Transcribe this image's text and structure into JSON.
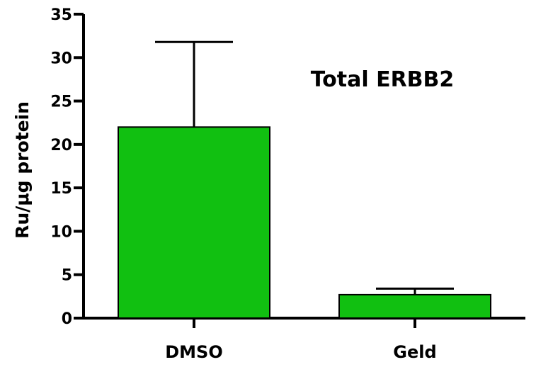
{
  "chart_data": {
    "type": "bar",
    "title": "Total ERBB2",
    "xlabel": "",
    "ylabel": "Ru/μg protein",
    "ylim": [
      0,
      35
    ],
    "yticks": [
      0,
      5,
      10,
      15,
      20,
      25,
      30,
      35
    ],
    "ytick_labels": [
      "0",
      "5",
      "10",
      "15",
      "20",
      "25",
      "30",
      "35"
    ],
    "categories": [
      "DMSO",
      "Geld"
    ],
    "values": [
      22,
      2.7
    ],
    "error_upper": [
      31.8,
      3.4
    ],
    "bar_color": "#11c011",
    "grid": false,
    "legend": "none"
  }
}
